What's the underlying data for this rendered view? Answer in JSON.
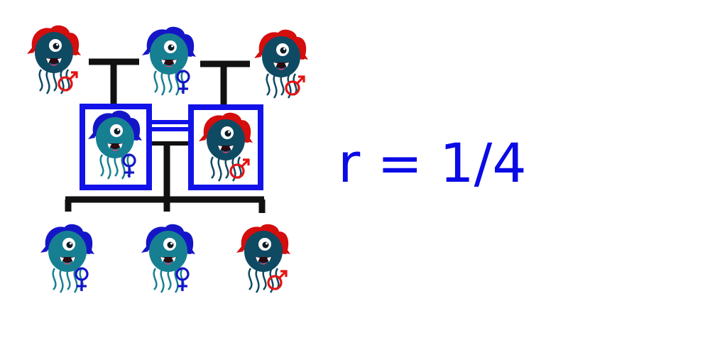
{
  "relatedness_label": "r = 1/4",
  "colors": {
    "male_hair": "#d40d0d",
    "female_hair": "#1515c8",
    "male_body": "#0f4a63",
    "female_body": "#177f92",
    "male_symbol": "#e31414",
    "female_symbol": "#1515c8",
    "highlight_box": "#1212e8",
    "lines": "#111111",
    "label": "#0a0ae6"
  },
  "pedigree": {
    "grandparents": [
      {
        "id": "gp1",
        "sex": "male",
        "icon": "monster-icon"
      },
      {
        "id": "gp2",
        "sex": "female",
        "icon": "monster-icon"
      },
      {
        "id": "gp3",
        "sex": "male",
        "icon": "monster-icon"
      }
    ],
    "parents": [
      {
        "id": "p1",
        "sex": "female",
        "highlighted": true,
        "icon": "monster-icon"
      },
      {
        "id": "p2",
        "sex": "male",
        "highlighted": true,
        "icon": "monster-icon"
      }
    ],
    "children": [
      {
        "id": "c1",
        "sex": "female",
        "icon": "monster-icon"
      },
      {
        "id": "c2",
        "sex": "female",
        "icon": "monster-icon"
      },
      {
        "id": "c3",
        "sex": "male",
        "icon": "monster-icon"
      }
    ]
  }
}
